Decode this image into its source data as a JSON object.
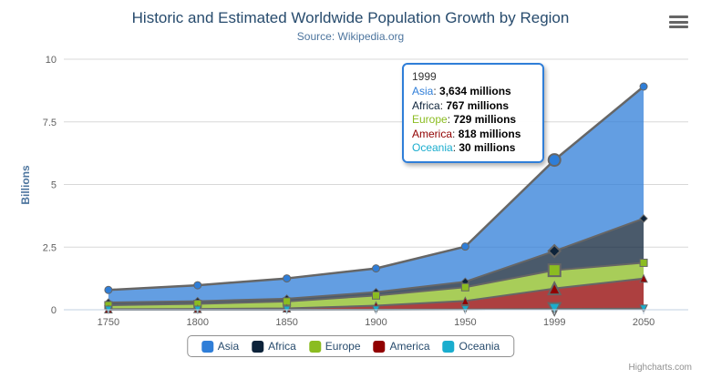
{
  "header": {
    "title": "Historic and Estimated Worldwide Population Growth by Region",
    "subtitle": "Source: Wikipedia.org",
    "export_menu_icon": "hamburger-icon"
  },
  "chart_data": {
    "type": "area",
    "stacking": "normal",
    "title": "Historic and Estimated Worldwide Population Growth by Region",
    "subtitle": "Source: Wikipedia.org",
    "categories": [
      "1750",
      "1800",
      "1850",
      "1900",
      "1950",
      "1999",
      "2050"
    ],
    "unit": "millions",
    "ylabel": "Billions",
    "yticks": [
      0,
      2.5,
      5,
      7.5,
      10
    ],
    "ylim": [
      0,
      10
    ],
    "grid": true,
    "legend_position": "bottom",
    "hover_index": 5,
    "hover_category": "1999",
    "series": [
      {
        "name": "Asia",
        "color": "#2f7ed8",
        "marker": "circle",
        "values": [
          502,
          635,
          809,
          947,
          1402,
          3634,
          5268
        ]
      },
      {
        "name": "Africa",
        "color": "#0d233a",
        "marker": "diamond",
        "values": [
          106,
          107,
          111,
          133,
          221,
          767,
          1766
        ]
      },
      {
        "name": "Europe",
        "color": "#8bbc21",
        "marker": "square",
        "values": [
          163,
          203,
          276,
          408,
          547,
          729,
          628
        ]
      },
      {
        "name": "America",
        "color": "#910000",
        "marker": "triangle",
        "values": [
          18,
          31,
          54,
          156,
          339,
          818,
          1201
        ]
      },
      {
        "name": "Oceania",
        "color": "#1aadce",
        "marker": "triangle-down",
        "values": [
          2,
          2,
          2,
          6,
          13,
          30,
          46
        ]
      }
    ],
    "line_color": "#666666",
    "fill_opacity": 0.75
  },
  "tooltip": {
    "header": "1999",
    "rows": [
      {
        "name": "Asia",
        "color": "#2f7ed8",
        "value": "3,634 millions"
      },
      {
        "name": "Africa",
        "color": "#0d233a",
        "value": "767 millions"
      },
      {
        "name": "Europe",
        "color": "#8bbc21",
        "value": "729 millions"
      },
      {
        "name": "America",
        "color": "#910000",
        "value": "818 millions"
      },
      {
        "name": "Oceania",
        "color": "#1aadce",
        "value": "30 millions"
      }
    ]
  },
  "legend": {
    "items": [
      "Asia",
      "Africa",
      "Europe",
      "America",
      "Oceania"
    ]
  },
  "credits": "Highcharts.com",
  "colors": {
    "title": "#274b6d",
    "subtitle": "#4d759e",
    "axis_labels": "#606060",
    "grid_line": "#d8d8d8",
    "axis_line": "#c0d0e0",
    "tooltip_border": "#2f7ed8",
    "legend_border": "#909090"
  }
}
